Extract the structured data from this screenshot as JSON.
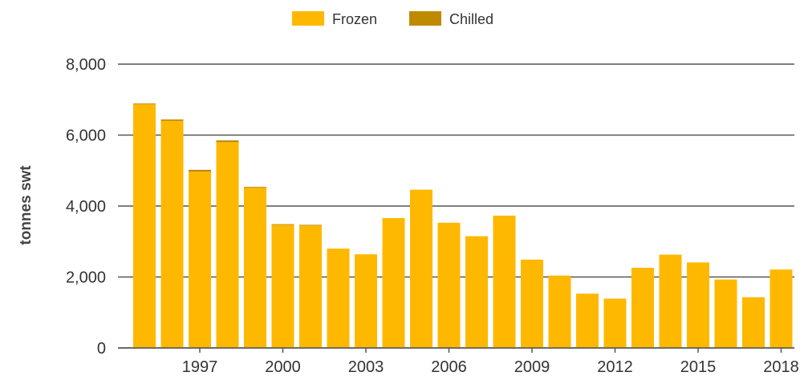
{
  "chart_data": {
    "type": "bar",
    "title": "",
    "xlabel": "",
    "ylabel": "tonnes swt",
    "ylim": [
      0,
      8000
    ],
    "yticks": [
      0,
      2000,
      4000,
      6000,
      8000
    ],
    "ytick_labels": [
      "0",
      "2,000",
      "4,000",
      "6,000",
      "8,000"
    ],
    "xtick_labels": [
      "1997",
      "2000",
      "2003",
      "2006",
      "2009",
      "2012",
      "2015",
      "2018"
    ],
    "grid": true,
    "legend": "top-center",
    "stacked": true,
    "categories": [
      "1995",
      "1996",
      "1997",
      "1998",
      "1999",
      "2000",
      "2001",
      "2002",
      "2003",
      "2004",
      "2005",
      "2006",
      "2007",
      "2008",
      "2009",
      "2010",
      "2011",
      "2012",
      "2013",
      "2014",
      "2015",
      "2016",
      "2017",
      "2018"
    ],
    "series": [
      {
        "name": "Frozen",
        "color": "#FFB800",
        "values": [
          6870,
          6400,
          4970,
          5800,
          4520,
          3470,
          3450,
          2800,
          2640,
          3660,
          4460,
          3530,
          3150,
          3730,
          2490,
          2040,
          1530,
          1390,
          2260,
          2630,
          2410,
          1930,
          1430,
          2210
        ]
      },
      {
        "name": "Chilled",
        "color": "#BF8A00",
        "values": [
          20,
          40,
          50,
          50,
          20,
          20,
          20,
          0,
          0,
          0,
          0,
          0,
          0,
          0,
          0,
          0,
          0,
          0,
          0,
          0,
          0,
          0,
          0,
          0
        ]
      }
    ]
  }
}
